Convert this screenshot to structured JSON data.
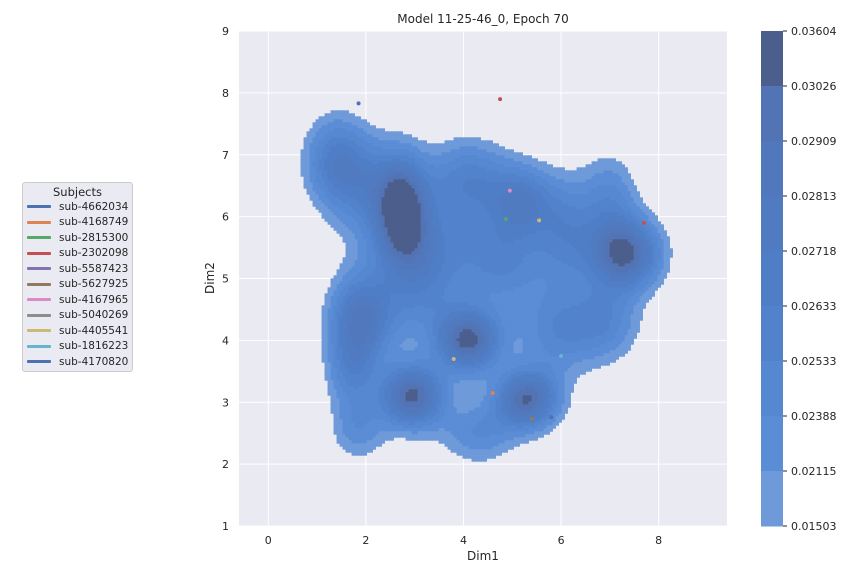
{
  "chart_data": {
    "type": "kde-contour",
    "title": "Model 11-25-46_0, Epoch 70",
    "xlabel": "Dim1",
    "ylabel": "Dim2",
    "xlim": [
      -0.6,
      9.4
    ],
    "ylim": [
      1,
      9
    ],
    "xticks": [
      0,
      2,
      4,
      6,
      8
    ],
    "yticks": [
      1,
      2,
      3,
      4,
      5,
      6,
      7,
      8,
      9
    ],
    "grid": true,
    "colorbar": {
      "ticks": [
        "0.03604",
        "0.03026",
        "0.02909",
        "0.02813",
        "0.02718",
        "0.02633",
        "0.02533",
        "0.02388",
        "0.02115",
        "0.01503"
      ],
      "colors": [
        "#4b5e8c",
        "#5274b5",
        "#5178bd",
        "#507bc1",
        "#4f7ec6",
        "#5282cb",
        "#5687d1",
        "#5b8cd6",
        "#6e9ad9",
        "#9fb2e0"
      ]
    },
    "density_peaks": [
      {
        "x": 1.4,
        "y": 6.9,
        "sx": 0.45,
        "sy": 0.5,
        "w": 0.55
      },
      {
        "x": 2.2,
        "y": 6.45,
        "sx": 0.6,
        "sy": 0.55,
        "w": 0.45
      },
      {
        "x": 2.75,
        "y": 6.1,
        "sx": 0.35,
        "sy": 0.55,
        "w": 0.9
      },
      {
        "x": 3.2,
        "y": 5.6,
        "sx": 0.75,
        "sy": 0.5,
        "w": 0.4
      },
      {
        "x": 4.1,
        "y": 6.6,
        "sx": 0.6,
        "sy": 0.45,
        "w": 0.5
      },
      {
        "x": 5.2,
        "y": 6.25,
        "sx": 0.45,
        "sy": 0.4,
        "w": 0.55
      },
      {
        "x": 4.8,
        "y": 5.3,
        "sx": 0.6,
        "sy": 0.55,
        "w": 0.45
      },
      {
        "x": 6.1,
        "y": 5.75,
        "sx": 0.45,
        "sy": 0.6,
        "w": 0.45
      },
      {
        "x": 7.3,
        "y": 5.4,
        "sx": 0.5,
        "sy": 0.4,
        "w": 1.0
      },
      {
        "x": 7.0,
        "y": 6.3,
        "sx": 0.4,
        "sy": 0.5,
        "w": 0.35
      },
      {
        "x": 1.9,
        "y": 4.35,
        "sx": 0.45,
        "sy": 0.5,
        "w": 0.75
      },
      {
        "x": 1.7,
        "y": 3.5,
        "sx": 0.35,
        "sy": 0.45,
        "w": 0.4
      },
      {
        "x": 3.1,
        "y": 4.8,
        "sx": 0.6,
        "sy": 0.55,
        "w": 0.4
      },
      {
        "x": 4.1,
        "y": 4.0,
        "sx": 0.45,
        "sy": 0.35,
        "w": 1.0
      },
      {
        "x": 2.95,
        "y": 3.1,
        "sx": 0.45,
        "sy": 0.35,
        "w": 1.0
      },
      {
        "x": 5.3,
        "y": 3.05,
        "sx": 0.45,
        "sy": 0.33,
        "w": 0.95
      },
      {
        "x": 5.9,
        "y": 4.15,
        "sx": 0.55,
        "sy": 0.5,
        "w": 0.4
      },
      {
        "x": 6.9,
        "y": 4.3,
        "sx": 0.5,
        "sy": 0.45,
        "w": 0.4
      },
      {
        "x": 4.3,
        "y": 2.5,
        "sx": 0.55,
        "sy": 0.35,
        "w": 0.35
      },
      {
        "x": 1.85,
        "y": 2.55,
        "sx": 0.4,
        "sy": 0.35,
        "w": 0.3
      }
    ],
    "points": [
      {
        "x": 1.85,
        "y": 7.83,
        "color": "#4c72b0"
      },
      {
        "x": 4.75,
        "y": 7.9,
        "color": "#c44e52"
      },
      {
        "x": 4.95,
        "y": 6.42,
        "color": "#da8bc3"
      },
      {
        "x": 4.87,
        "y": 5.96,
        "color": "#55a868"
      },
      {
        "x": 5.55,
        "y": 5.94,
        "color": "#ccb974"
      },
      {
        "x": 7.7,
        "y": 5.9,
        "color": "#c44e52"
      },
      {
        "x": 3.8,
        "y": 3.7,
        "color": "#ccb974"
      },
      {
        "x": 6.0,
        "y": 3.75,
        "color": "#64b5cd"
      },
      {
        "x": 4.6,
        "y": 3.15,
        "color": "#dd8452"
      },
      {
        "x": 5.8,
        "y": 2.76,
        "color": "#4c72b0"
      },
      {
        "x": 5.4,
        "y": 2.73,
        "color": "#937860"
      }
    ]
  },
  "legend": {
    "title": "Subjects",
    "items": [
      {
        "label": "sub-4662034",
        "color": "#4c72b0"
      },
      {
        "label": "sub-4168749",
        "color": "#dd8452"
      },
      {
        "label": "sub-2815300",
        "color": "#55a868"
      },
      {
        "label": "sub-2302098",
        "color": "#c44e52"
      },
      {
        "label": "sub-5587423",
        "color": "#8172b3"
      },
      {
        "label": "sub-5627925",
        "color": "#937860"
      },
      {
        "label": "sub-4167965",
        "color": "#da8bc3"
      },
      {
        "label": "sub-5040269",
        "color": "#8c8c8c"
      },
      {
        "label": "sub-4405541",
        "color": "#ccb974"
      },
      {
        "label": "sub-1816223",
        "color": "#64b5cd"
      },
      {
        "label": "sub-4170820",
        "color": "#4c72b0"
      }
    ]
  }
}
